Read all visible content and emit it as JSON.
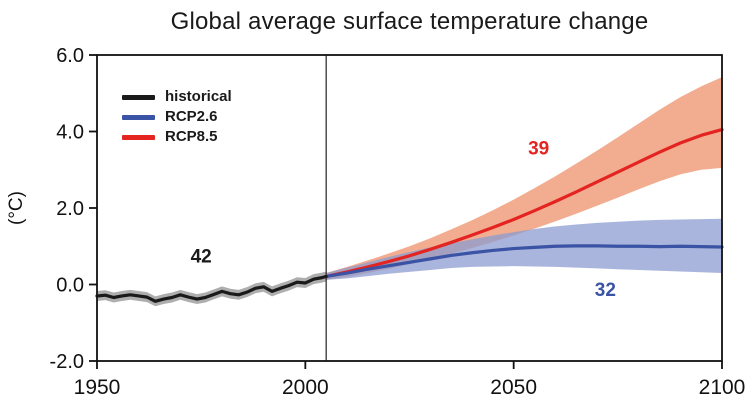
{
  "chart_data": {
    "type": "line",
    "title": "Global average surface temperature change",
    "ylabel": "(°C)",
    "xlim": [
      1950,
      2100
    ],
    "ylim": [
      -2.0,
      6.0
    ],
    "xticks": [
      1950,
      2000,
      2050,
      2100
    ],
    "xtick_labels": [
      "1950",
      "2000",
      "2050",
      "2100"
    ],
    "yticks": [
      -2.0,
      0.0,
      2.0,
      4.0,
      6.0
    ],
    "ytick_labels": [
      "-2.0",
      "0.0",
      "2.0",
      "4.0",
      "6.0"
    ],
    "grid": false,
    "legend_position": "upper-left-inside",
    "vertical_line_x": 2005,
    "legend": [
      {
        "label": "historical",
        "color": "#1a1a1a"
      },
      {
        "label": "RCP2.6",
        "color": "#3a53a4"
      },
      {
        "label": "RCP8.5",
        "color": "#e32421"
      }
    ],
    "series": [
      {
        "name": "historical",
        "color": "#1a1a1a",
        "band_color": "#9a9a9a",
        "band_opacity": 0.8,
        "x": [
          1950,
          1952,
          1954,
          1956,
          1958,
          1960,
          1962,
          1964,
          1966,
          1968,
          1970,
          1972,
          1974,
          1976,
          1978,
          1980,
          1982,
          1984,
          1986,
          1988,
          1990,
          1992,
          1994,
          1996,
          1998,
          2000,
          2002,
          2004,
          2005
        ],
        "y": [
          -0.3,
          -0.28,
          -0.34,
          -0.3,
          -0.27,
          -0.3,
          -0.33,
          -0.44,
          -0.38,
          -0.34,
          -0.27,
          -0.33,
          -0.38,
          -0.34,
          -0.26,
          -0.18,
          -0.24,
          -0.27,
          -0.2,
          -0.1,
          -0.06,
          -0.18,
          -0.1,
          -0.03,
          0.06,
          0.04,
          0.14,
          0.18,
          0.21
        ],
        "lower": [
          -0.43,
          -0.41,
          -0.47,
          -0.43,
          -0.4,
          -0.43,
          -0.46,
          -0.57,
          -0.51,
          -0.47,
          -0.4,
          -0.46,
          -0.51,
          -0.47,
          -0.39,
          -0.31,
          -0.37,
          -0.4,
          -0.33,
          -0.23,
          -0.19,
          -0.31,
          -0.23,
          -0.16,
          -0.07,
          -0.09,
          0.01,
          0.05,
          0.08
        ],
        "upper": [
          -0.17,
          -0.15,
          -0.21,
          -0.17,
          -0.14,
          -0.17,
          -0.2,
          -0.31,
          -0.25,
          -0.21,
          -0.14,
          -0.2,
          -0.25,
          -0.21,
          -0.13,
          -0.05,
          -0.11,
          -0.14,
          -0.07,
          0.03,
          0.07,
          -0.05,
          0.03,
          0.1,
          0.19,
          0.17,
          0.27,
          0.31,
          0.34
        ]
      },
      {
        "name": "RCP2.6",
        "color": "#3a53a4",
        "band_color": "#8c9cd0",
        "band_opacity": 0.75,
        "x": [
          2005,
          2010,
          2015,
          2020,
          2025,
          2030,
          2035,
          2040,
          2045,
          2050,
          2055,
          2060,
          2065,
          2070,
          2075,
          2080,
          2085,
          2090,
          2095,
          2100
        ],
        "y": [
          0.21,
          0.3,
          0.4,
          0.49,
          0.58,
          0.67,
          0.76,
          0.83,
          0.89,
          0.94,
          0.97,
          1.0,
          1.01,
          1.01,
          1.0,
          1.0,
          0.99,
          1.0,
          0.99,
          0.98
        ],
        "lower": [
          0.12,
          0.16,
          0.22,
          0.28,
          0.33,
          0.38,
          0.43,
          0.46,
          0.47,
          0.48,
          0.47,
          0.46,
          0.44,
          0.42,
          0.4,
          0.38,
          0.36,
          0.34,
          0.32,
          0.3
        ],
        "upper": [
          0.3,
          0.44,
          0.58,
          0.72,
          0.85,
          0.97,
          1.08,
          1.18,
          1.28,
          1.37,
          1.45,
          1.52,
          1.57,
          1.61,
          1.64,
          1.67,
          1.69,
          1.7,
          1.71,
          1.72
        ]
      },
      {
        "name": "RCP8.5",
        "color": "#e32421",
        "band_color": "#f09d7c",
        "band_opacity": 0.85,
        "x": [
          2005,
          2010,
          2015,
          2020,
          2025,
          2030,
          2035,
          2040,
          2045,
          2050,
          2055,
          2060,
          2065,
          2070,
          2075,
          2080,
          2085,
          2090,
          2095,
          2100
        ],
        "y": [
          0.21,
          0.33,
          0.46,
          0.6,
          0.75,
          0.92,
          1.1,
          1.29,
          1.49,
          1.7,
          1.93,
          2.17,
          2.42,
          2.68,
          2.94,
          3.2,
          3.46,
          3.7,
          3.9,
          4.05
        ],
        "lower": [
          0.12,
          0.2,
          0.3,
          0.41,
          0.53,
          0.66,
          0.8,
          0.95,
          1.11,
          1.28,
          1.46,
          1.65,
          1.85,
          2.06,
          2.27,
          2.49,
          2.7,
          2.88,
          3.0,
          3.05
        ],
        "upper": [
          0.3,
          0.46,
          0.63,
          0.81,
          1.0,
          1.21,
          1.44,
          1.68,
          1.94,
          2.22,
          2.52,
          2.83,
          3.16,
          3.5,
          3.85,
          4.21,
          4.57,
          4.9,
          5.18,
          5.42
        ]
      }
    ],
    "annotations": [
      {
        "text": "42",
        "x": 1975,
        "y": 0.58,
        "color": "#1a1a1a"
      },
      {
        "text": "39",
        "x": 2056,
        "y": 3.4,
        "color": "#e32421"
      },
      {
        "text": "32",
        "x": 2072,
        "y": -0.3,
        "color": "#3a53a4"
      }
    ]
  }
}
